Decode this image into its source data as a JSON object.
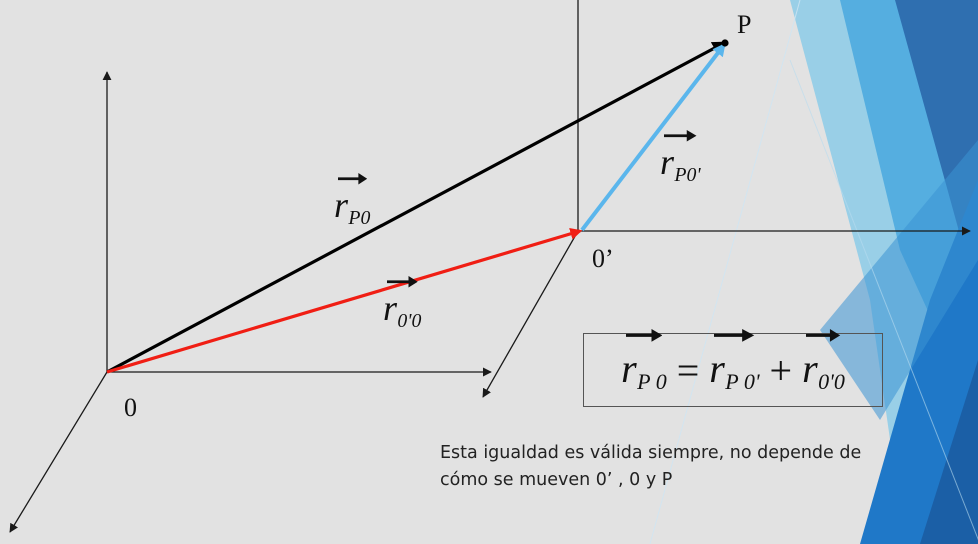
{
  "diagram": {
    "origin_label": "0",
    "moving_origin_label": "0’",
    "point_label": "P",
    "vec_p0": {
      "symbol": "r",
      "sub": "P0"
    },
    "vec_p0prime": {
      "symbol": "r",
      "sub": "P0'"
    },
    "vec_0prime0": {
      "symbol": "r",
      "sub": "0'0"
    },
    "colors": {
      "vec_p0": "#000000",
      "vec_p0prime": "#5bb6ec",
      "vec_0prime0": "#f01e14",
      "axes": "#1a1a1a"
    }
  },
  "formula": {
    "lhs": {
      "symbol": "r",
      "sub": "P 0"
    },
    "equals": "=",
    "t1": {
      "symbol": "r",
      "sub": "P 0'"
    },
    "plus": "+",
    "t2": {
      "symbol": "r",
      "sub": "0'0"
    }
  },
  "note": {
    "line1": "Esta igualdad es válida  siempre, no depende de",
    "line2": "cómo se mueven  0’ , 0 y P"
  },
  "background": {
    "slide_color": "#e2e2e2",
    "accent_colors": [
      "#2f6fb0",
      "#1f78c8",
      "#55aee0",
      "#8ccbe8"
    ]
  }
}
